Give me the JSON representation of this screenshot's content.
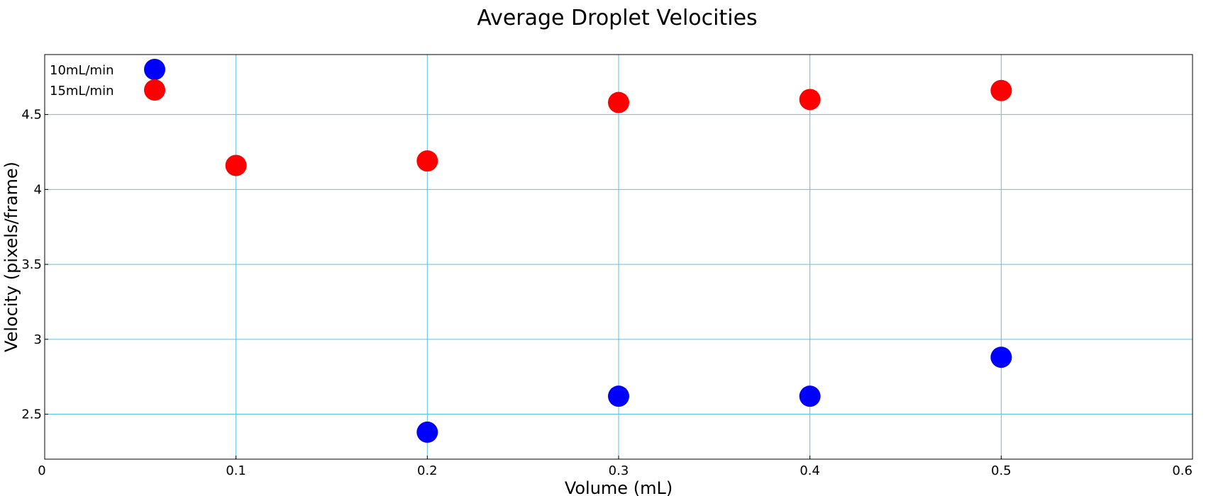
{
  "chart_data": {
    "type": "scatter",
    "title": "Average Droplet Velocities",
    "xlabel": "Volume (mL)",
    "ylabel": "Velocity (pixels/frame)",
    "xlim": [
      0,
      0.6
    ],
    "ylim": [
      2.2,
      4.9
    ],
    "xticks": [
      0,
      0.1,
      0.2,
      0.3,
      0.4,
      0.5,
      0.6
    ],
    "xtick_labels": [
      "0",
      "0.1",
      "0.2",
      "0.3",
      "0.4",
      "0.5",
      "0.6"
    ],
    "yticks": [
      2.5,
      3,
      3.5,
      4,
      4.5
    ],
    "ytick_labels": [
      "2.5",
      "3",
      "3.5",
      "4",
      "4.5"
    ],
    "grid": true,
    "legend_position": "top-left",
    "series": [
      {
        "name": "10mL/min",
        "color": "#0000ff",
        "x": [
          0.2,
          0.3,
          0.4,
          0.5
        ],
        "y": [
          2.38,
          2.62,
          2.62,
          2.88
        ]
      },
      {
        "name": "15mL/min",
        "color": "#ff0000",
        "x": [
          0.1,
          0.2,
          0.3,
          0.4,
          0.5
        ],
        "y": [
          4.16,
          4.19,
          4.58,
          4.6,
          4.66
        ]
      }
    ]
  }
}
